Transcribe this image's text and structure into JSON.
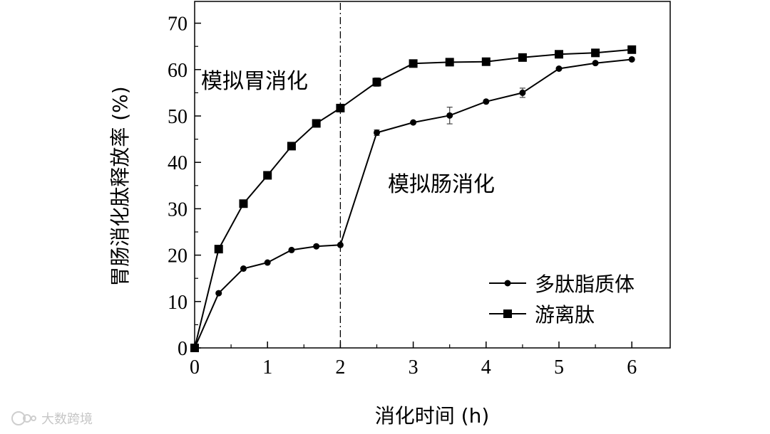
{
  "chart_data": {
    "type": "line",
    "x": [
      0,
      0.33,
      0.67,
      1,
      1.33,
      1.67,
      2,
      2.5,
      3,
      3.5,
      4,
      4.5,
      5,
      5.5,
      6
    ],
    "series": [
      {
        "name": "多肽脂质体",
        "marker": "circle",
        "values": [
          0,
          11.8,
          17.1,
          18.4,
          21.1,
          21.9,
          22.2,
          46.4,
          48.6,
          50.1,
          53.1,
          55.0,
          60.2,
          61.4,
          62.2
        ],
        "errors": [
          0,
          0,
          0,
          0,
          0,
          0,
          0,
          0.6,
          0,
          1.8,
          0,
          1.0,
          0,
          0,
          0
        ]
      },
      {
        "name": "游离肽",
        "marker": "square",
        "values": [
          0,
          21.3,
          31.1,
          37.2,
          43.5,
          48.4,
          51.7,
          57.3,
          61.3,
          61.6,
          61.7,
          62.6,
          63.3,
          63.6,
          64.3
        ],
        "errors": [
          0,
          0,
          0,
          0,
          0,
          0,
          0,
          0.9,
          0,
          0,
          0,
          0,
          0,
          0,
          0
        ]
      }
    ],
    "xlabel": "消化时间 (h)",
    "ylabel": "胃肠消化肽释放率 (%)",
    "xlim": [
      0,
      6.5
    ],
    "ylim": [
      0,
      75
    ],
    "x_ticks": [
      "0",
      "1",
      "2",
      "3",
      "4",
      "5",
      "6"
    ],
    "y_ticks": [
      "0",
      "10",
      "20",
      "30",
      "40",
      "50",
      "60",
      "70"
    ],
    "divider_x": 2,
    "annotations": [
      "模拟胃消化",
      "模拟肠消化"
    ],
    "grid": false,
    "legend_position": "bottom-right",
    "colors": {
      "line": "#000000",
      "background": "#ffffff"
    }
  },
  "watermark": {
    "text": "大数跨境",
    "icon": "watermark-logo-icon"
  }
}
